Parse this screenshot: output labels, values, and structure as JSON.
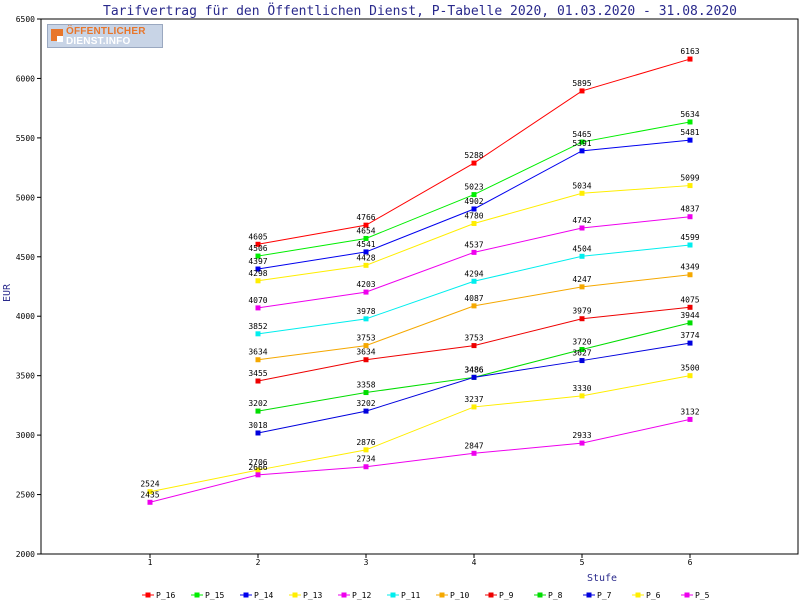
{
  "chart_data": {
    "type": "line",
    "title": "Tarifvertrag für den Öffentlichen Dienst, P-Tabelle 2020, 01.03.2020 - 31.08.2020",
    "xlabel": "Stufe",
    "ylabel": "EUR",
    "x": [
      1,
      2,
      3,
      4,
      5,
      6
    ],
    "ylim": [
      2000,
      6500
    ],
    "yticks": [
      2000,
      2500,
      3000,
      3500,
      4000,
      4500,
      5000,
      5500,
      6000,
      6500
    ],
    "grid": false,
    "legend_position": "bottom",
    "series": [
      {
        "name": "P_16",
        "color": "#ff0000",
        "values": [
          null,
          4605,
          4766,
          5288,
          5895,
          6163
        ]
      },
      {
        "name": "P_15",
        "color": "#00ee00",
        "values": [
          null,
          4506,
          4654,
          5023,
          5465,
          5634
        ]
      },
      {
        "name": "P_14",
        "color": "#0000ee",
        "values": [
          null,
          4397,
          4541,
          4902,
          5391,
          5481
        ]
      },
      {
        "name": "P_13",
        "color": "#ffee00",
        "values": [
          null,
          4298,
          4428,
          4780,
          5034,
          5099
        ]
      },
      {
        "name": "P_12",
        "color": "#ee00ee",
        "values": [
          null,
          4070,
          4203,
          4537,
          4742,
          4837
        ]
      },
      {
        "name": "P_11",
        "color": "#00eeee",
        "values": [
          null,
          3852,
          3978,
          4294,
          4504,
          4599
        ]
      },
      {
        "name": "P_10",
        "color": "#f5a800",
        "values": [
          null,
          3634,
          3753,
          4087,
          4247,
          4349
        ]
      },
      {
        "name": "P_9",
        "color": "#ee0000",
        "values": [
          null,
          3455,
          3634,
          3753,
          3979,
          4075
        ]
      },
      {
        "name": "P_8",
        "color": "#00dd00",
        "values": [
          null,
          3202,
          3358,
          3486,
          3720,
          3944
        ]
      },
      {
        "name": "P_7",
        "color": "#0000dd",
        "values": [
          null,
          3018,
          3202,
          3486,
          3627,
          3774
        ]
      },
      {
        "name": "P_6",
        "color": "#ffee00",
        "values": [
          2524,
          2706,
          2876,
          3237,
          3330,
          3500
        ]
      },
      {
        "name": "P_5",
        "color": "#ee00ee",
        "values": [
          2435,
          2666,
          2734,
          2847,
          2933,
          3132
        ]
      }
    ]
  },
  "logo": {
    "line1": "ÖFFENTLICHER",
    "line2": "DIENST.INFO"
  }
}
